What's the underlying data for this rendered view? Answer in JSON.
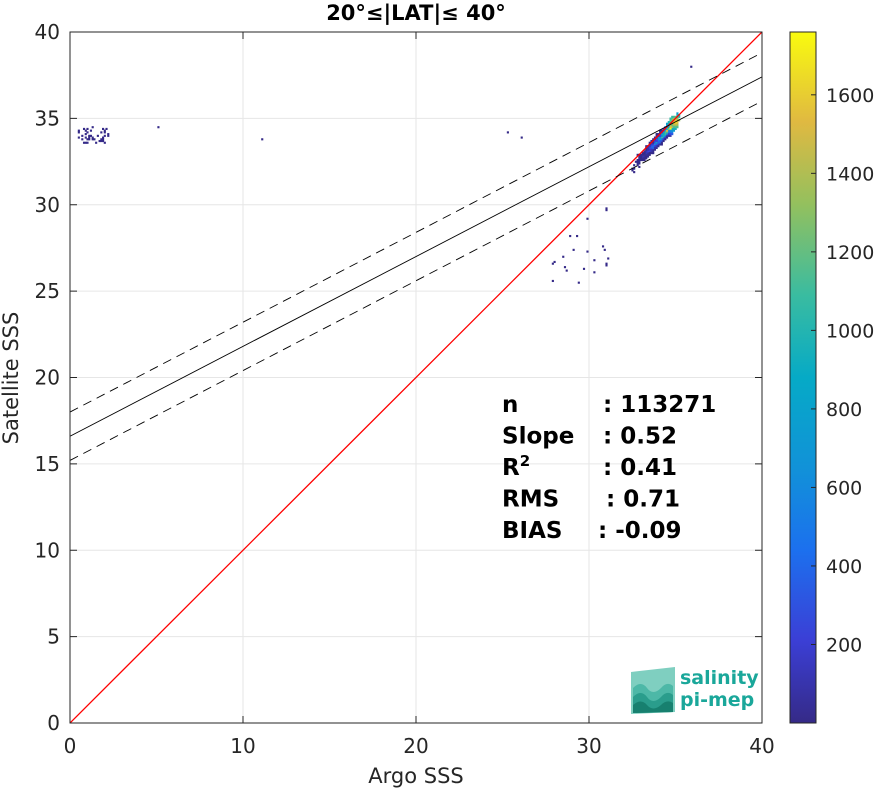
{
  "chart_data": {
    "type": "scatter",
    "subtype": "2d-density-histogram",
    "title": "20°≤|LAT|≤ 40°",
    "xlabel": "Argo SSS",
    "ylabel": "Satellite SSS",
    "xlim": [
      0,
      40
    ],
    "ylim": [
      0,
      40
    ],
    "xticks": [
      0,
      10,
      20,
      30,
      40
    ],
    "yticks": [
      0,
      5,
      10,
      15,
      20,
      25,
      30,
      35,
      40
    ],
    "grid": true,
    "colorbar": {
      "range": [
        0,
        1760
      ],
      "ticks": [
        200,
        400,
        600,
        800,
        1000,
        1200,
        1400,
        1600
      ],
      "colormap": "parula"
    },
    "lines": [
      {
        "label": "1:1",
        "color": "#ff0000",
        "style": "solid",
        "slope": 1,
        "intercept": 0
      },
      {
        "label": "regression",
        "color": "#000000",
        "style": "solid",
        "slope": 0.52,
        "intercept": 16.6
      },
      {
        "label": "regression + band",
        "color": "#000000",
        "style": "dashed",
        "slope": 0.52,
        "intercept": 18.0
      },
      {
        "label": "regression - band",
        "color": "#000000",
        "style": "dashed",
        "slope": 0.52,
        "intercept": 15.2
      }
    ],
    "density_clusters": [
      {
        "x": [
          31.5,
          36.0
        ],
        "y": [
          29.8,
          36.0
        ],
        "peak_xy": [
          35.0,
          34.8
        ],
        "peak_count": 1760
      },
      {
        "x": [
          0.4,
          2.2
        ],
        "y": [
          33.6,
          34.5
        ],
        "peak_count": 20
      }
    ],
    "stats": [
      {
        "label": "n",
        "value": ": 113271"
      },
      {
        "label": "Slope",
        "value": ": 0.52"
      },
      {
        "label": "R",
        "sup": "2",
        "value": ": 0.41"
      },
      {
        "label": "RMS",
        "value": ": 0.71"
      },
      {
        "label": "BIAS",
        "value": ": -0.09"
      }
    ]
  },
  "logo": {
    "line1": "salinity",
    "line2": "pi-mep"
  },
  "colors": {
    "one_to_one": "#ff0000",
    "regression": "#000000",
    "logo": "#1aa79a"
  }
}
